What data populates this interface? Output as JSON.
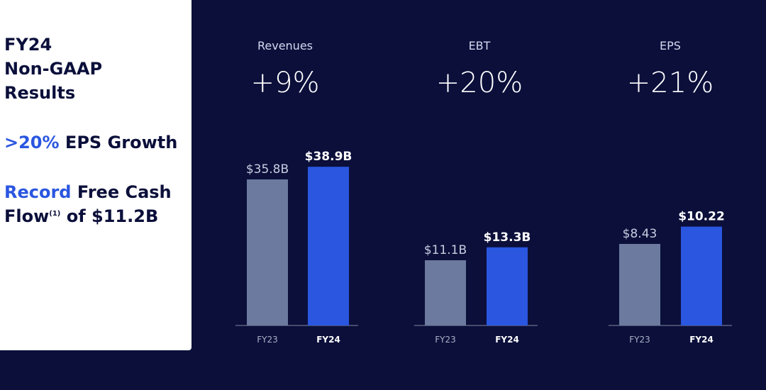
{
  "summary": {
    "headline": [
      "FY24",
      "Non-GAAP",
      "Results"
    ],
    "eps_growth_accent": ">20%",
    "eps_growth_text": " EPS Growth",
    "fcf_accent": "Record",
    "fcf_text_1": " Free Cash",
    "fcf_text_2a": "Flow",
    "fcf_footnote": "(1)",
    "fcf_text_2b": " of $11.2B"
  },
  "colors": {
    "background": "#0b0f3a",
    "fy23_bar": "#6b7a9e",
    "fy24_bar": "#2a56e0",
    "accent": "#2a56e0"
  },
  "chart_data": [
    {
      "type": "bar",
      "title": "Revenues",
      "growth": "+9%",
      "categories": [
        "FY23",
        "FY24"
      ],
      "values": [
        35.8,
        38.9
      ],
      "value_labels": [
        "$35.8B",
        "$38.9B"
      ],
      "unit": "$B"
    },
    {
      "type": "bar",
      "title": "EBT",
      "growth": "+20%",
      "categories": [
        "FY23",
        "FY24"
      ],
      "values": [
        11.1,
        13.3
      ],
      "value_labels": [
        "$11.1B",
        "$13.3B"
      ],
      "unit": "$B"
    },
    {
      "type": "bar",
      "title": "EPS",
      "growth": "+21%",
      "categories": [
        "FY23",
        "FY24"
      ],
      "values": [
        8.43,
        10.22
      ],
      "value_labels": [
        "$8.43",
        "$10.22"
      ],
      "unit": "$"
    }
  ]
}
